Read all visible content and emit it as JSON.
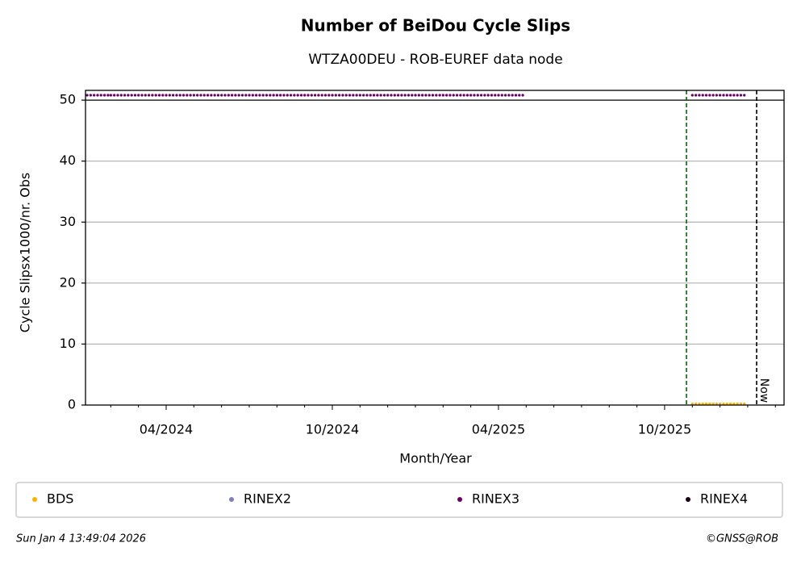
{
  "chart_data": {
    "type": "scatter",
    "title": "Number of BeiDou Cycle Slips",
    "subtitle": "WTZA00DEU - ROB-EUREF data node",
    "x_label": "Month/Year",
    "y_label": "Cycle Slipsx1000/nr. Obs",
    "categories": [
      null,
      null,
      null,
      "04/2024",
      null,
      null,
      null,
      null,
      null,
      "10/2024",
      null,
      null,
      null,
      null,
      null,
      "04/2025",
      null,
      null,
      null,
      null,
      null,
      "10/2025",
      null,
      null,
      null,
      null
    ],
    "series": [
      {
        "name": "BDS",
        "color": "#ffb000",
        "values": [
          null,
          null,
          null,
          null,
          null,
          null,
          null,
          null,
          null,
          null,
          null,
          null,
          null,
          null,
          null,
          null,
          null,
          null,
          null,
          null,
          null,
          null,
          0.2,
          0.2,
          null,
          null
        ]
      },
      {
        "name": "RINEX2",
        "color": "#7f7fbf",
        "values": [
          null,
          null,
          null,
          null,
          null,
          null,
          null,
          null,
          null,
          null,
          null,
          null,
          null,
          null,
          null,
          null,
          null,
          null,
          null,
          null,
          null,
          null,
          null,
          null,
          null,
          null
        ]
      },
      {
        "name": "RINEX3",
        "color": "#6b0064",
        "values": [
          50.9,
          50.9,
          50.9,
          50.9,
          50.9,
          50.9,
          50.9,
          50.9,
          50.9,
          50.9,
          50.9,
          50.9,
          50.9,
          50.9,
          50.9,
          50.9,
          null,
          null,
          null,
          null,
          null,
          null,
          50.9,
          50.9,
          null,
          null
        ]
      },
      {
        "name": "RINEX4",
        "color": "#1a0018",
        "values": [
          null,
          null,
          null,
          null,
          null,
          null,
          null,
          null,
          null,
          null,
          null,
          null,
          null,
          null,
          null,
          null,
          null,
          null,
          null,
          null,
          null,
          null,
          null,
          null,
          null,
          null
        ]
      }
    ],
    "ylim": [
      0,
      51.6
    ],
    "yticks": [
      0,
      10,
      20,
      30,
      40,
      50
    ],
    "hline": 50,
    "grid": true,
    "markers": [
      {
        "color": "#006400"
      },
      {
        "color": "#000000",
        "label": "Now"
      }
    ],
    "legend": "bottom",
    "footer_left": "Sun Jan  4 13:49:04 2026",
    "footer_right": "©GNSS@ROB"
  }
}
